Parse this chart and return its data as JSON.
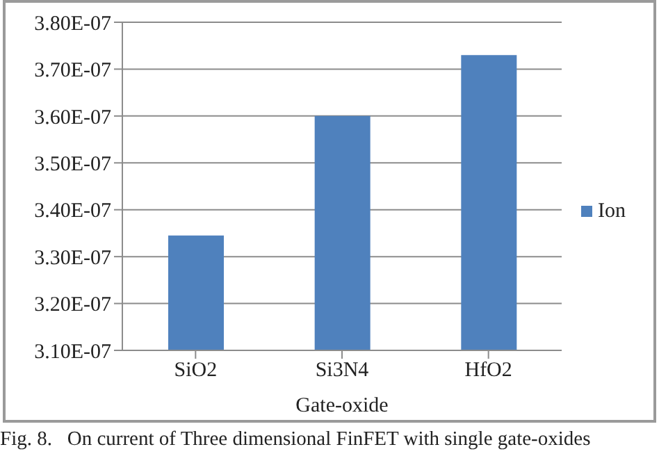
{
  "chart_data": {
    "type": "bar",
    "xlabel": "Gate-oxide",
    "categories": [
      "SiO2",
      "Si3N4",
      "HfO2"
    ],
    "series": [
      {
        "name": "Ion",
        "color": "#4f81bd",
        "values": [
          3.345e-07,
          3.6e-07,
          3.73e-07
        ]
      }
    ],
    "ylim": [
      3.1e-07,
      3.8e-07
    ],
    "yticks": [
      {
        "value": 3.1e-07,
        "label": "3.10E-07"
      },
      {
        "value": 3.2e-07,
        "label": "3.20E-07"
      },
      {
        "value": 3.3e-07,
        "label": "3.30E-07"
      },
      {
        "value": 3.4e-07,
        "label": "3.40E-07"
      },
      {
        "value": 3.5e-07,
        "label": "3.50E-07"
      },
      {
        "value": 3.6e-07,
        "label": "3.60E-07"
      },
      {
        "value": 3.7e-07,
        "label": "3.70E-07"
      },
      {
        "value": 3.8e-07,
        "label": "3.80E-07"
      }
    ],
    "grid": "y",
    "legend": "right",
    "annotations": [
      "Fig. 8.   On current of Three dimensional FinFET with single gate-oxides"
    ]
  }
}
